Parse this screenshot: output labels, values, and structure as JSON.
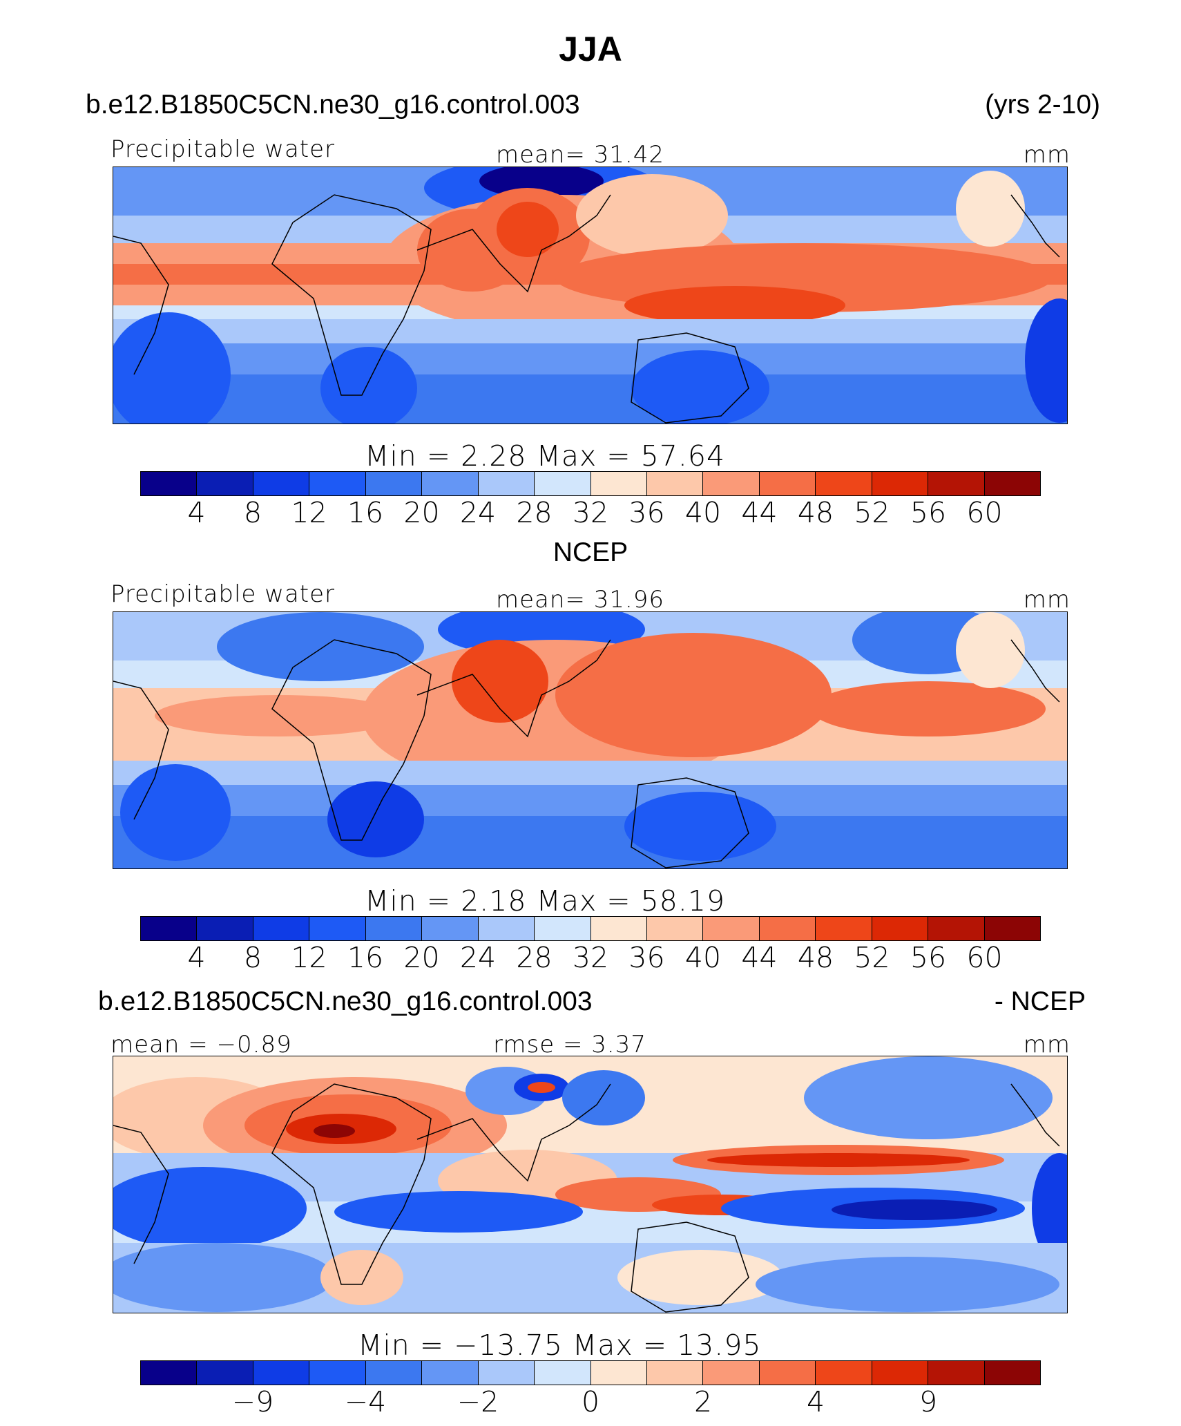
{
  "figure_title": "JJA",
  "colors": [
    "#08008a",
    "#0a1eb4",
    "#0f3ce6",
    "#1e5af5",
    "#3c78f0",
    "#6496f5",
    "#aac8fa",
    "#d2e6fc",
    "#fde6d2",
    "#fdc8aa",
    "#fa9a78",
    "#f56e46",
    "#ee4619",
    "#dc2805",
    "#b41405",
    "#8c0505"
  ],
  "panels": [
    {
      "header_left": "b.e12.B1850C5CN.ne30_g16.control.003",
      "header_right": "(yrs 2-10)",
      "var_label": "Precipitable water",
      "stat_label": "mean=   31.42",
      "units": "mm",
      "minmax": "Min  =     2.28  Max  =    57.64",
      "ticks": [
        "4",
        "8",
        "12",
        "16",
        "20",
        "24",
        "28",
        "32",
        "36",
        "40",
        "44",
        "48",
        "52",
        "56",
        "60"
      ]
    },
    {
      "header_center": "NCEP",
      "var_label": "Precipitable water",
      "stat_label": "mean=   31.96",
      "units": "mm",
      "minmax": "Min  =     2.18  Max  =    58.19",
      "ticks": [
        "4",
        "8",
        "12",
        "16",
        "20",
        "24",
        "28",
        "32",
        "36",
        "40",
        "44",
        "48",
        "52",
        "56",
        "60"
      ]
    },
    {
      "header_left": "b.e12.B1850C5CN.ne30_g16.control.003",
      "header_right": "- NCEP",
      "mean_label": "mean  =   −0.89",
      "rmse_label": "rmse  =       3.37",
      "units": "mm",
      "minmax": "Min  =  −13.75  Max  =    13.95",
      "ticks": [
        "−9",
        "−4",
        "−2",
        "0",
        "2",
        "4",
        "9"
      ]
    }
  ]
}
